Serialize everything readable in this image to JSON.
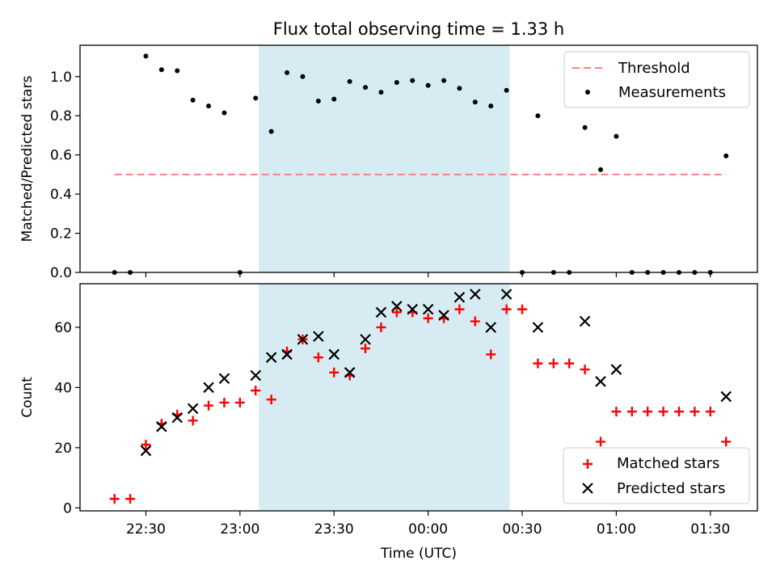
{
  "figure": {
    "title": "Flux total observing time = 1.33 h"
  },
  "colors": {
    "shade": "#add8e6",
    "threshold": "#ff7f7f",
    "measurement": "#000000",
    "matched": "#ff0000",
    "predicted": "#000000"
  },
  "chart_data": [
    {
      "type": "scatter",
      "ylabel": "Matched/Predicted stars",
      "ylim": [
        0,
        1.16
      ],
      "yticks": [
        0.0,
        0.2,
        0.4,
        0.6,
        0.8,
        1.0
      ],
      "ytick_labels": [
        "0.0",
        "0.2",
        "0.4",
        "0.6",
        "0.8",
        "1.0"
      ],
      "xlim": [
        "22:09",
        "01:45"
      ],
      "xticks": [
        "22:30",
        "23:00",
        "23:30",
        "00:00",
        "00:30",
        "01:00",
        "01:30"
      ],
      "xtick_labels_visible": false,
      "shaded_region": {
        "from": "23:06",
        "to": "00:26"
      },
      "legend_position": "upper right",
      "threshold": {
        "name": "Threshold",
        "value": 0.5,
        "x_from": "22:20",
        "x_to": "01:35",
        "style": "dashed"
      },
      "series": [
        {
          "name": "Measurements",
          "x": [
            "22:20",
            "22:25",
            "22:30",
            "22:35",
            "22:40",
            "22:45",
            "22:50",
            "22:55",
            "23:00",
            "23:05",
            "23:10",
            "23:15",
            "23:20",
            "23:25",
            "23:30",
            "23:35",
            "23:40",
            "23:45",
            "23:50",
            "23:55",
            "00:00",
            "00:05",
            "00:10",
            "00:15",
            "00:20",
            "00:25",
            "00:30",
            "00:35",
            "00:40",
            "00:45",
            "00:50",
            "00:55",
            "01:00",
            "01:05",
            "01:10",
            "01:15",
            "01:20",
            "01:25",
            "01:30",
            "01:35"
          ],
          "y": [
            0.0,
            0.0,
            1.105,
            1.035,
            1.03,
            0.88,
            0.85,
            0.815,
            0.0,
            0.89,
            0.72,
            1.02,
            1.0,
            0.875,
            0.885,
            0.975,
            0.945,
            0.92,
            0.97,
            0.98,
            0.955,
            0.98,
            0.94,
            0.87,
            0.85,
            0.93,
            0.0,
            0.8,
            0.0,
            0.0,
            0.74,
            0.525,
            0.695,
            0.0,
            0.0,
            0.0,
            0.0,
            0.0,
            0.0,
            0.595
          ]
        }
      ]
    },
    {
      "type": "scatter",
      "xlabel": "Time (UTC)",
      "ylabel": "Count",
      "ylim": [
        -1,
        74.5
      ],
      "yticks": [
        0,
        20,
        40,
        60
      ],
      "ytick_labels": [
        "0",
        "20",
        "40",
        "60"
      ],
      "xlim": [
        "22:09",
        "01:45"
      ],
      "xticks": [
        "22:30",
        "23:00",
        "23:30",
        "00:00",
        "00:30",
        "01:00",
        "01:30"
      ],
      "xtick_labels": [
        "22:30",
        "23:00",
        "23:30",
        "00:00",
        "00:30",
        "01:00",
        "01:30"
      ],
      "shaded_region": {
        "from": "23:06",
        "to": "00:26"
      },
      "legend_position": "lower right",
      "series": [
        {
          "name": "Matched stars",
          "marker": "+",
          "x": [
            "22:20",
            "22:25",
            "22:30",
            "22:35",
            "22:40",
            "22:45",
            "22:50",
            "22:55",
            "23:00",
            "23:05",
            "23:10",
            "23:15",
            "23:20",
            "23:25",
            "23:30",
            "23:35",
            "23:40",
            "23:45",
            "23:50",
            "23:55",
            "00:00",
            "00:05",
            "00:10",
            "00:15",
            "00:20",
            "00:25",
            "00:30",
            "00:35",
            "00:40",
            "00:45",
            "00:50",
            "00:55",
            "01:00",
            "01:05",
            "01:10",
            "01:15",
            "01:20",
            "01:25",
            "01:30",
            "01:35"
          ],
          "y": [
            3,
            3,
            21,
            28,
            31,
            29,
            34,
            35,
            35,
            39,
            36,
            52,
            56,
            50,
            45,
            44,
            53,
            60,
            65,
            65,
            63,
            63,
            66,
            62,
            51,
            66,
            66,
            48,
            48,
            48,
            46,
            22,
            32,
            32,
            32,
            32,
            32,
            32,
            32,
            22
          ]
        },
        {
          "name": "Predicted stars",
          "marker": "x",
          "x": [
            "22:30",
            "22:35",
            "22:40",
            "22:45",
            "22:50",
            "22:55",
            "23:05",
            "23:10",
            "23:15",
            "23:20",
            "23:25",
            "23:30",
            "23:35",
            "23:40",
            "23:45",
            "23:50",
            "23:55",
            "00:00",
            "00:05",
            "00:10",
            "00:15",
            "00:20",
            "00:25",
            "00:35",
            "00:50",
            "00:55",
            "01:00",
            "01:35"
          ],
          "y": [
            19,
            27,
            30,
            33,
            40,
            43,
            44,
            50,
            51,
            56,
            57,
            51,
            45,
            56,
            65,
            67,
            66,
            66,
            64,
            70,
            71,
            60,
            71,
            60,
            62,
            42,
            46,
            37
          ]
        }
      ]
    }
  ]
}
